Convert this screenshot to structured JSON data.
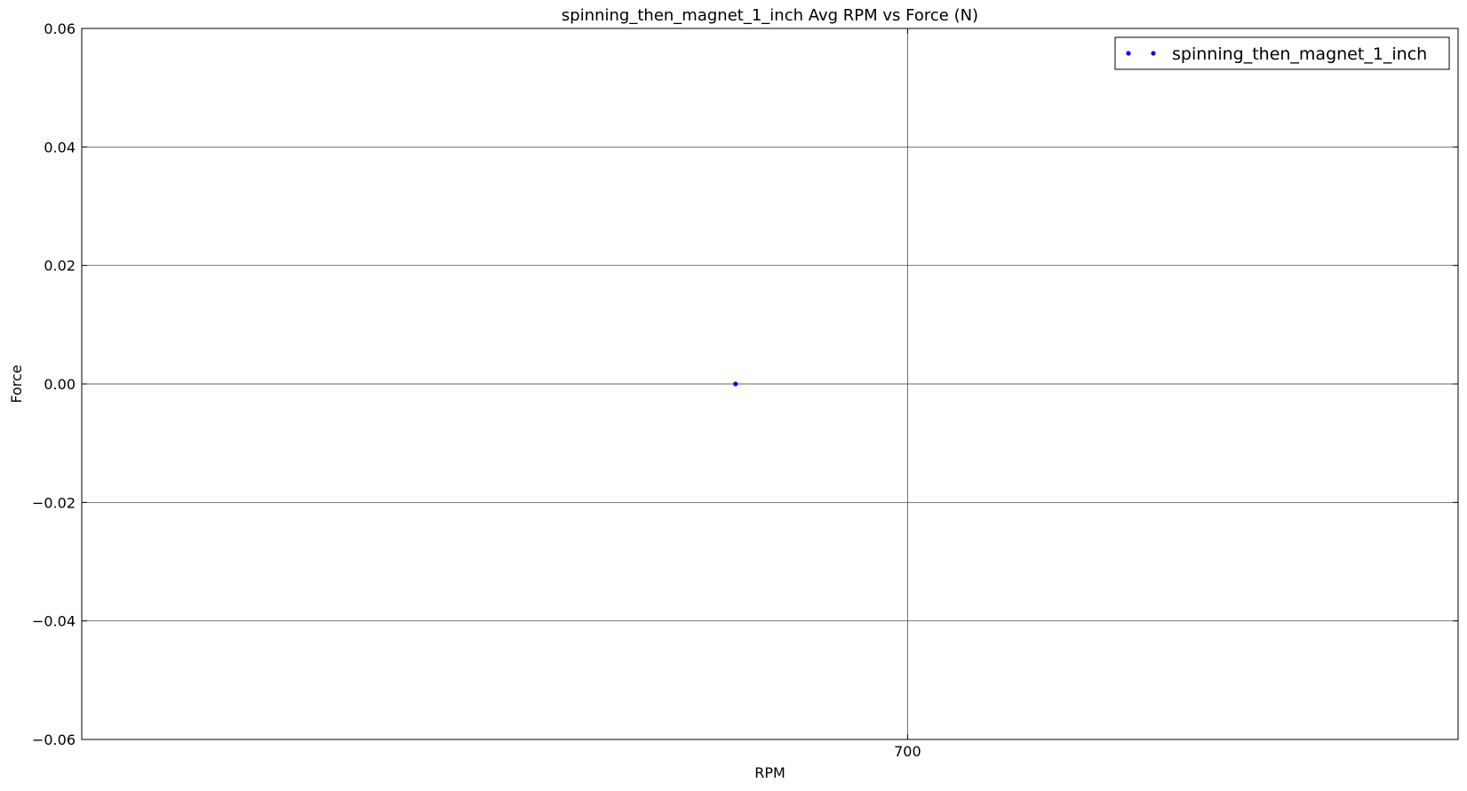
{
  "chart_data": {
    "type": "scatter",
    "title": "spinning_then_magnet_1_inch Avg RPM vs Force (N)",
    "xlabel": "RPM",
    "ylabel": "Force",
    "xlim": [
      580,
      780
    ],
    "ylim": [
      -0.06,
      0.06
    ],
    "x_ticks": [
      700
    ],
    "x_tick_labels": [
      "700"
    ],
    "y_ticks": [
      -0.06,
      -0.04,
      -0.02,
      0.0,
      0.02,
      0.04,
      0.06
    ],
    "y_tick_labels": [
      "−0.06",
      "−0.04",
      "−0.02",
      "0.00",
      "0.02",
      "0.04",
      "0.06"
    ],
    "grid": true,
    "legend_position": "top-right",
    "series": [
      {
        "name": "spinning_then_magnet_1_inch",
        "color": "#0000ff",
        "x": [
          675
        ],
        "y": [
          0.0
        ]
      }
    ]
  }
}
